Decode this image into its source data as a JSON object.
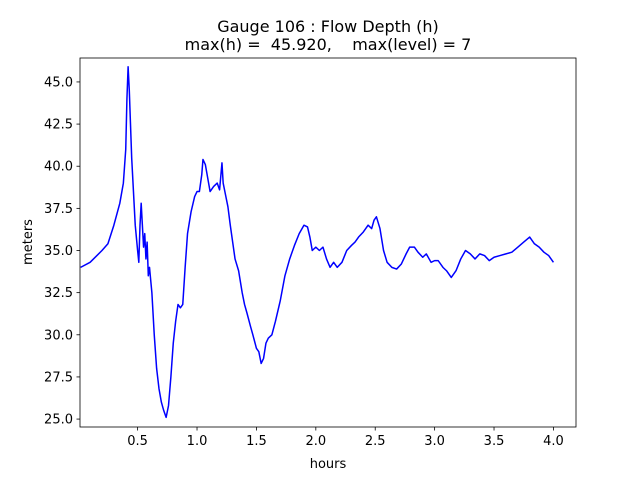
{
  "chart_data": {
    "type": "line",
    "title": "Gauge 106 : Flow Depth (h)",
    "subtitle": "max(h) =  45.920,    max(level) = 7",
    "x_label": "hours",
    "y_label": "meters",
    "x": [
      0.02,
      0.1,
      0.2,
      0.25,
      0.3,
      0.35,
      0.38,
      0.4,
      0.41,
      0.42,
      0.43,
      0.45,
      0.48,
      0.5,
      0.51,
      0.52,
      0.53,
      0.54,
      0.55,
      0.56,
      0.57,
      0.58,
      0.59,
      0.6,
      0.62,
      0.64,
      0.66,
      0.68,
      0.7,
      0.72,
      0.74,
      0.76,
      0.78,
      0.8,
      0.82,
      0.84,
      0.86,
      0.88,
      0.9,
      0.92,
      0.95,
      0.98,
      1.0,
      1.02,
      1.04,
      1.05,
      1.07,
      1.09,
      1.11,
      1.14,
      1.17,
      1.19,
      1.21,
      1.22,
      1.24,
      1.26,
      1.28,
      1.3,
      1.32,
      1.35,
      1.38,
      1.4,
      1.42,
      1.45,
      1.47,
      1.5,
      1.52,
      1.54,
      1.56,
      1.58,
      1.6,
      1.63,
      1.66,
      1.7,
      1.74,
      1.78,
      1.82,
      1.86,
      1.9,
      1.93,
      1.95,
      1.97,
      2.0,
      2.03,
      2.06,
      2.09,
      2.12,
      2.15,
      2.18,
      2.22,
      2.26,
      2.3,
      2.33,
      2.36,
      2.4,
      2.44,
      2.47,
      2.49,
      2.51,
      2.54,
      2.57,
      2.6,
      2.64,
      2.68,
      2.72,
      2.76,
      2.79,
      2.83,
      2.86,
      2.9,
      2.93,
      2.97,
      3.0,
      3.03,
      3.07,
      3.1,
      3.14,
      3.18,
      3.22,
      3.26,
      3.3,
      3.34,
      3.38,
      3.42,
      3.46,
      3.5,
      3.55,
      3.6,
      3.65,
      3.7,
      3.75,
      3.8,
      3.84,
      3.88,
      3.92,
      3.96,
      4.0
    ],
    "series": [
      {
        "name": "h",
        "color": "#0000ff",
        "values": [
          34.0,
          34.3,
          35.0,
          35.4,
          36.5,
          37.8,
          39.0,
          41.0,
          44.0,
          45.9,
          44.5,
          40.5,
          36.5,
          35.0,
          34.3,
          36.5,
          37.8,
          36.5,
          35.2,
          36.0,
          34.5,
          35.5,
          33.5,
          34.0,
          32.5,
          30.0,
          28.0,
          26.8,
          26.0,
          25.5,
          25.1,
          25.8,
          27.5,
          29.5,
          30.8,
          31.8,
          31.6,
          31.8,
          34.0,
          36.0,
          37.3,
          38.2,
          38.5,
          38.5,
          39.5,
          40.4,
          40.1,
          39.3,
          38.5,
          38.8,
          39.0,
          38.6,
          40.2,
          39.0,
          38.3,
          37.6,
          36.5,
          35.5,
          34.5,
          33.8,
          32.5,
          31.8,
          31.3,
          30.5,
          30.0,
          29.2,
          29.0,
          28.3,
          28.6,
          29.5,
          29.8,
          30.0,
          30.8,
          32.0,
          33.5,
          34.5,
          35.3,
          36.0,
          36.5,
          36.4,
          35.8,
          35.0,
          35.2,
          35.0,
          35.2,
          34.5,
          34.0,
          34.3,
          34.0,
          34.3,
          35.0,
          35.3,
          35.5,
          35.8,
          36.1,
          36.5,
          36.3,
          36.8,
          37.0,
          36.3,
          35.0,
          34.3,
          34.0,
          33.9,
          34.2,
          34.8,
          35.2,
          35.2,
          34.9,
          34.6,
          34.8,
          34.3,
          34.4,
          34.4,
          34.0,
          33.8,
          33.4,
          33.8,
          34.5,
          35.0,
          34.8,
          34.5,
          34.8,
          34.7,
          34.4,
          34.6,
          34.7,
          34.8,
          34.9,
          35.2,
          35.5,
          35.8,
          35.4,
          35.2,
          34.9,
          34.7,
          34.3
        ]
      }
    ],
    "xlim": [
      0.015,
      4.19
    ],
    "ylim": [
      24.53,
      46.42
    ],
    "xticks": [
      0.5,
      {
        "value": 1,
        "label": "1.0"
      },
      1.5,
      {
        "value": 2,
        "label": "2.0"
      },
      2.5,
      {
        "value": 3,
        "label": "3.0"
      },
      3.5,
      {
        "value": 4,
        "label": "4.0"
      }
    ],
    "yticks": [
      {
        "value": 25,
        "label": "25.0"
      },
      27.5,
      {
        "value": 30,
        "label": "30.0"
      },
      32.5,
      {
        "value": 35,
        "label": "35.0"
      },
      37.5,
      {
        "value": 40,
        "label": "40.0"
      },
      42.5,
      {
        "value": 45,
        "label": "45.0"
      }
    ],
    "grid": false
  }
}
